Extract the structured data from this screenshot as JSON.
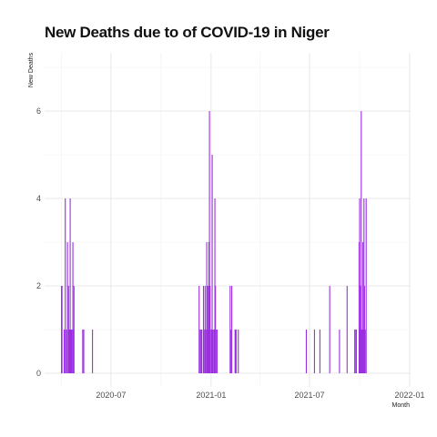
{
  "chart_data": {
    "type": "bar",
    "title": "New Deaths due to of COVID-19 in Niger",
    "xlabel": "Month",
    "ylabel": "New Deaths",
    "bar_color": "#9b30e0",
    "grid": true,
    "xlim": [
      "2020-03-01",
      "2022-01-01"
    ],
    "ylim": [
      0,
      7
    ],
    "x_ticks": [
      {
        "date": "2020-07-01",
        "label": "2020-07"
      },
      {
        "date": "2021-01-01",
        "label": "2021-01"
      },
      {
        "date": "2021-07-01",
        "label": "2021-07"
      },
      {
        "date": "2022-01-01",
        "label": "2022-01"
      }
    ],
    "y_ticks": [
      0,
      2,
      4,
      6
    ],
    "points": [
      {
        "x": "2020-04-01",
        "y": 2
      },
      {
        "x": "2020-04-02",
        "y": 2
      },
      {
        "x": "2020-04-06",
        "y": 1
      },
      {
        "x": "2020-04-08",
        "y": 4
      },
      {
        "x": "2020-04-10",
        "y": 1
      },
      {
        "x": "2020-04-12",
        "y": 3
      },
      {
        "x": "2020-04-14",
        "y": 2
      },
      {
        "x": "2020-04-15",
        "y": 1
      },
      {
        "x": "2020-04-16",
        "y": 1
      },
      {
        "x": "2020-04-17",
        "y": 4
      },
      {
        "x": "2020-04-18",
        "y": 1
      },
      {
        "x": "2020-04-19",
        "y": 1
      },
      {
        "x": "2020-04-20",
        "y": 1
      },
      {
        "x": "2020-04-22",
        "y": 3
      },
      {
        "x": "2020-04-23",
        "y": 1
      },
      {
        "x": "2020-04-24",
        "y": 2
      },
      {
        "x": "2020-05-10",
        "y": 1
      },
      {
        "x": "2020-05-12",
        "y": 1
      },
      {
        "x": "2020-05-28",
        "y": 1
      },
      {
        "x": "2020-12-10",
        "y": 2
      },
      {
        "x": "2020-12-12",
        "y": 1
      },
      {
        "x": "2020-12-14",
        "y": 1
      },
      {
        "x": "2020-12-15",
        "y": 1
      },
      {
        "x": "2020-12-18",
        "y": 2
      },
      {
        "x": "2020-12-20",
        "y": 1
      },
      {
        "x": "2020-12-21",
        "y": 2
      },
      {
        "x": "2020-12-22",
        "y": 1
      },
      {
        "x": "2020-12-24",
        "y": 3
      },
      {
        "x": "2020-12-25",
        "y": 2
      },
      {
        "x": "2020-12-26",
        "y": 1
      },
      {
        "x": "2020-12-27",
        "y": 2
      },
      {
        "x": "2020-12-28",
        "y": 3
      },
      {
        "x": "2020-12-29",
        "y": 6
      },
      {
        "x": "2020-12-30",
        "y": 2
      },
      {
        "x": "2021-01-01",
        "y": 1
      },
      {
        "x": "2021-01-02",
        "y": 1
      },
      {
        "x": "2021-01-03",
        "y": 5
      },
      {
        "x": "2021-01-04",
        "y": 1
      },
      {
        "x": "2021-01-05",
        "y": 1
      },
      {
        "x": "2021-01-07",
        "y": 1
      },
      {
        "x": "2021-01-08",
        "y": 4
      },
      {
        "x": "2021-01-09",
        "y": 2
      },
      {
        "x": "2021-01-10",
        "y": 1
      },
      {
        "x": "2021-01-12",
        "y": 1
      },
      {
        "x": "2021-02-05",
        "y": 2
      },
      {
        "x": "2021-02-06",
        "y": 1
      },
      {
        "x": "2021-02-08",
        "y": 2
      },
      {
        "x": "2021-02-14",
        "y": 1
      },
      {
        "x": "2021-02-15",
        "y": 1
      },
      {
        "x": "2021-02-16",
        "y": 1
      },
      {
        "x": "2021-02-20",
        "y": 1
      },
      {
        "x": "2021-06-25",
        "y": 1
      },
      {
        "x": "2021-07-10",
        "y": 1
      },
      {
        "x": "2021-07-20",
        "y": 1
      },
      {
        "x": "2021-08-07",
        "y": 2
      },
      {
        "x": "2021-08-25",
        "y": 1
      },
      {
        "x": "2021-09-08",
        "y": 2
      },
      {
        "x": "2021-09-22",
        "y": 1
      },
      {
        "x": "2021-09-24",
        "y": 1
      },
      {
        "x": "2021-09-25",
        "y": 1
      },
      {
        "x": "2021-09-30",
        "y": 3
      },
      {
        "x": "2021-10-01",
        "y": 4
      },
      {
        "x": "2021-10-02",
        "y": 1
      },
      {
        "x": "2021-10-03",
        "y": 2
      },
      {
        "x": "2021-10-04",
        "y": 6
      },
      {
        "x": "2021-10-05",
        "y": 1
      },
      {
        "x": "2021-10-06",
        "y": 1
      },
      {
        "x": "2021-10-07",
        "y": 3
      },
      {
        "x": "2021-10-08",
        "y": 1
      },
      {
        "x": "2021-10-09",
        "y": 4
      },
      {
        "x": "2021-10-10",
        "y": 2
      },
      {
        "x": "2021-10-11",
        "y": 1
      },
      {
        "x": "2021-10-13",
        "y": 4
      }
    ]
  }
}
